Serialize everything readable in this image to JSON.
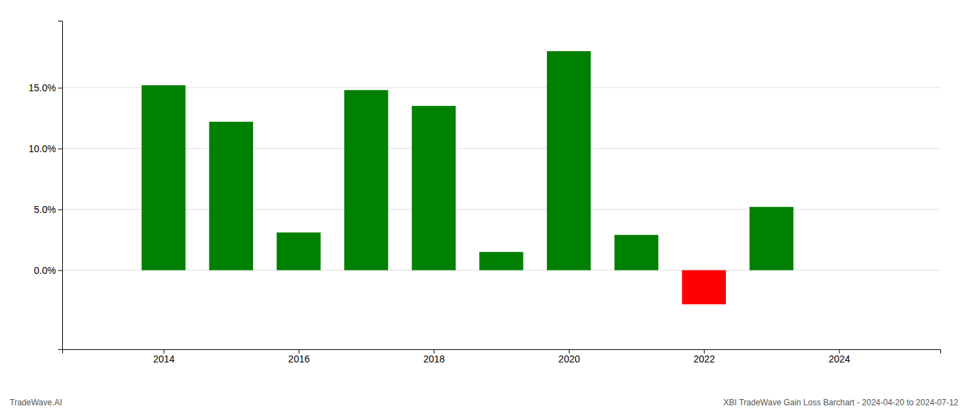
{
  "chart_data": {
    "type": "bar",
    "x": [
      2014,
      2015,
      2016,
      2017,
      2018,
      2019,
      2020,
      2021,
      2022,
      2023
    ],
    "values": [
      0.152,
      0.122,
      0.031,
      0.148,
      0.135,
      0.015,
      0.18,
      0.029,
      -0.028,
      0.052
    ],
    "colors": [
      "#008000",
      "#008000",
      "#008000",
      "#008000",
      "#008000",
      "#008000",
      "#008000",
      "#008000",
      "#ff0000",
      "#008000"
    ],
    "xlim": [
      2012.5,
      2025.5
    ],
    "xticks": [
      2014,
      2016,
      2018,
      2020,
      2022,
      2024
    ],
    "ylim": [
      -0.065,
      0.205
    ],
    "yticks": [
      {
        "value": 0.0,
        "label": "0.0%"
      },
      {
        "value": 0.05,
        "label": "5.0%"
      },
      {
        "value": 0.1,
        "label": "10.0%"
      },
      {
        "value": 0.15,
        "label": "15.0%"
      }
    ],
    "grid": true,
    "annotations": [
      "TradeWave.AI",
      "XBI TradeWave Gain Loss Barchart - 2024-04-20 to 2024-07-12"
    ]
  }
}
